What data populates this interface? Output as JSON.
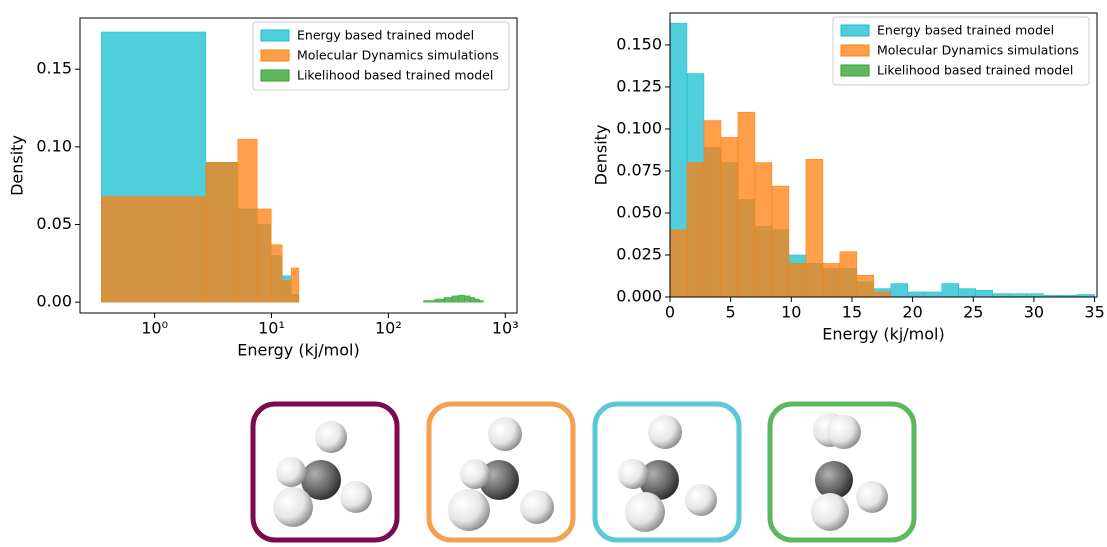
{
  "chart_data": [
    {
      "type": "histogram",
      "xlabel": "Energy (kj/mol)",
      "ylabel": "Density",
      "xscale": "log",
      "xlim": [
        0.23,
        1260
      ],
      "ylim": [
        -0.007,
        0.183
      ],
      "xticks": [
        {
          "value": 1,
          "label": "10⁰"
        },
        {
          "value": 10,
          "label": "10¹"
        },
        {
          "value": 100,
          "label": "10²"
        },
        {
          "value": 1000,
          "label": "10³"
        }
      ],
      "yticks": [
        {
          "value": 0,
          "label": "0.00"
        },
        {
          "value": 0.05,
          "label": "0.05"
        },
        {
          "value": 0.1,
          "label": "0.10"
        },
        {
          "value": 0.15,
          "label": "0.15"
        }
      ],
      "legend": "upper right",
      "series": [
        {
          "name": "Energy based trained model",
          "color": "#17becf",
          "bins": [
            0.35,
            2.75,
            5.15,
            7.55,
            9.95,
            12.35,
            14.75,
            17.15
          ],
          "values": [
            0.174,
            0.09,
            0.06,
            0.05,
            0.03,
            0.017,
            0.005
          ]
        },
        {
          "name": "Molecular Dynamics simulations",
          "color": "#ff7f0e",
          "bins": [
            0.35,
            2.75,
            5.15,
            7.55,
            9.95,
            12.35,
            14.75,
            17.15
          ],
          "values": [
            0.068,
            0.09,
            0.105,
            0.06,
            0.037,
            0.014,
            0.022
          ]
        },
        {
          "name": "Likelihood based trained model",
          "color": "#2ca02c",
          "bins": [
            200,
            250,
            300,
            350,
            400,
            450,
            500,
            550,
            600,
            650
          ],
          "values": [
            0.001,
            0.002,
            0.003,
            0.004,
            0.0045,
            0.004,
            0.003,
            0.002,
            0.001
          ]
        }
      ]
    },
    {
      "type": "histogram",
      "xlabel": "Energy (kj/mol)",
      "ylabel": "Density",
      "xlim": [
        0,
        35.2
      ],
      "ylim": [
        0,
        0.169
      ],
      "xticks": [
        0,
        5,
        10,
        15,
        20,
        25,
        30,
        35
      ],
      "yticks": [
        {
          "value": 0,
          "label": "0.000"
        },
        {
          "value": 0.025,
          "label": "0.025"
        },
        {
          "value": 0.05,
          "label": "0.050"
        },
        {
          "value": 0.075,
          "label": "0.075"
        },
        {
          "value": 0.1,
          "label": "0.100"
        },
        {
          "value": 0.125,
          "label": "0.125"
        },
        {
          "value": 0.15,
          "label": "0.150"
        }
      ],
      "legend": "upper right",
      "series": [
        {
          "name": "Energy based trained model",
          "color": "#17becf",
          "bins": [
            0,
            1.4,
            2.8,
            4.2,
            5.6,
            7,
            8.4,
            9.8,
            11.2,
            12.6,
            14,
            15.4,
            16.8,
            18.2,
            19.6,
            21,
            22.4,
            23.8,
            25.2,
            26.6,
            28,
            29.4,
            30.8,
            32.2,
            33.6,
            35
          ],
          "values": [
            0.163,
            0.133,
            0.089,
            0.08,
            0.058,
            0.042,
            0.04,
            0.025,
            0.02,
            0.017,
            0.017,
            0.009,
            0.005,
            0.008,
            0.003,
            0.003,
            0.008,
            0.005,
            0.004,
            0.002,
            0.002,
            0.002,
            0.001,
            0.001,
            0.0015
          ]
        },
        {
          "name": "Molecular Dynamics simulations",
          "color": "#ff7f0e",
          "bins": [
            0,
            1.4,
            2.8,
            4.2,
            5.6,
            7,
            8.4,
            9.8,
            11.2,
            12.6,
            14,
            15.4,
            16.8,
            18.2
          ],
          "values": [
            0.04,
            0.08,
            0.105,
            0.095,
            0.11,
            0.08,
            0.066,
            0.02,
            0.082,
            0.02,
            0.027,
            0.013,
            0.003
          ]
        },
        {
          "name": "Likelihood based trained model",
          "color": "#2ca02c"
        }
      ]
    }
  ]
}
